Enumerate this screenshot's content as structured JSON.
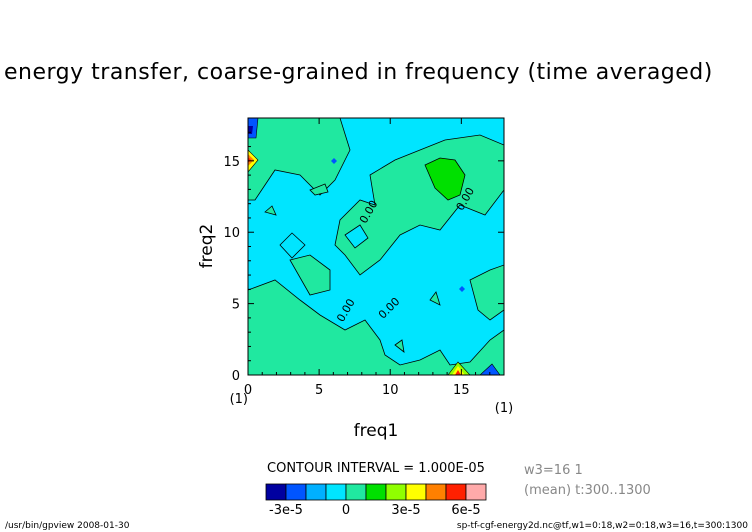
{
  "header": {
    "title": "energy transfer, coarse-grained in frequency (time averaged)"
  },
  "chart_data": {
    "type": "contour",
    "title": "energy transfer, coarse-grained in frequency (time averaged)",
    "xlabel": "freq1",
    "ylabel": "freq2",
    "xlim": [
      0,
      18
    ],
    "ylim": [
      0,
      18
    ],
    "x_ticks": [
      "0",
      "5",
      "10",
      "15"
    ],
    "y_ticks": [
      "0",
      "5",
      "10",
      "15"
    ],
    "x_unit": "(1)",
    "y_unit": "(1)",
    "contour_labels": [
      "0.00",
      "0.00",
      "0.00",
      "0.00",
      "0.00"
    ],
    "contour_interval_text": "CONTOUR INTERVAL = 1.000E-05",
    "colorbar": {
      "levels": [
        -3e-05,
        0,
        3e-05,
        6e-05
      ],
      "tick_labels": [
        "-3e-5",
        "0",
        "3e-5",
        "6e-5"
      ],
      "colors": [
        "#0000a0",
        "#0055ff",
        "#00b0ff",
        "#00e5ff",
        "#20e8a0",
        "#00e000",
        "#90ff00",
        "#ffff00",
        "#ff8000",
        "#ff2000",
        "#ffaaaa"
      ]
    },
    "annotations": [
      "w3=16 1",
      "(mean) t:300..1300"
    ]
  },
  "footer": {
    "left": "/usr/bin/gpview  2008-01-30",
    "right": "sp-tf-cgf-energy2d.nc@tf,w1=0:18,w2=0:18,w3=16,t=300:1300"
  }
}
